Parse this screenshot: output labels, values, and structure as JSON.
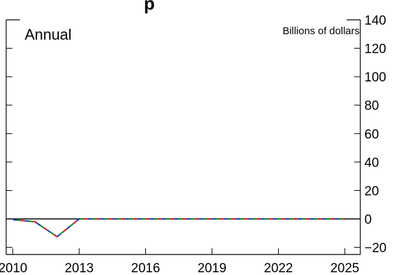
{
  "chart_data": {
    "type": "line",
    "title_fragment": "p",
    "annotation": "Annual",
    "ylabel": "Billions of dollars",
    "xlabel": "",
    "xlim": [
      2009.7,
      2025.7
    ],
    "ylim": [
      -25,
      140
    ],
    "x_ticks": [
      2010,
      2013,
      2016,
      2019,
      2022,
      2025
    ],
    "y_ticks": [
      -20,
      0,
      20,
      40,
      60,
      80,
      100,
      120,
      140
    ],
    "y_tick_labels": [
      "−20",
      "0",
      "20",
      "40",
      "60",
      "80",
      "100",
      "120",
      "140"
    ],
    "zero_line": true,
    "grid": false,
    "x": [
      2010,
      2011,
      2012,
      2013,
      2014,
      2015,
      2016,
      2017,
      2018,
      2019,
      2020,
      2021,
      2022,
      2023,
      2024,
      2025
    ],
    "series": [
      {
        "color": "#1f3fbf",
        "values": [
          -0.5,
          -2,
          -12.5,
          0,
          0,
          0,
          0,
          0,
          0,
          0,
          0,
          0,
          0,
          0,
          0,
          0
        ]
      },
      {
        "color": "#d22020",
        "values": [
          -0.5,
          -2,
          -12.5,
          0,
          0,
          0,
          0,
          0,
          0,
          0,
          0,
          0,
          0,
          0,
          0,
          0
        ]
      },
      {
        "color": "#1a8a2a",
        "values": [
          -0.5,
          -2,
          -12.5,
          0,
          0,
          0,
          0,
          0,
          0,
          0,
          0,
          0,
          0,
          0,
          0,
          0
        ]
      }
    ]
  }
}
